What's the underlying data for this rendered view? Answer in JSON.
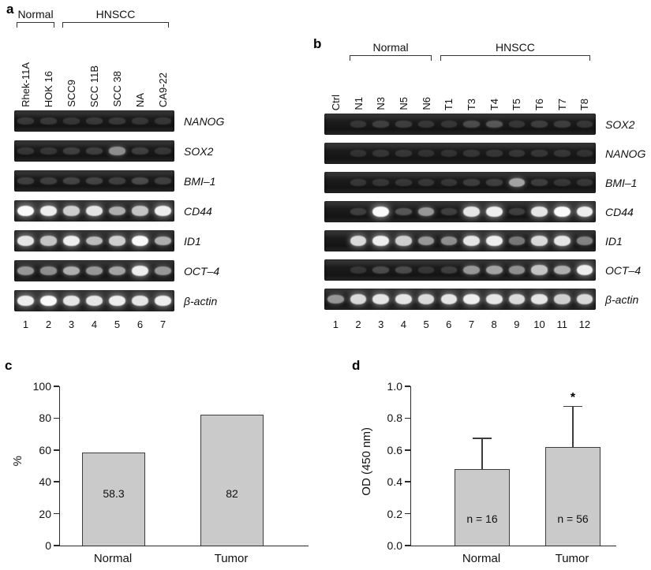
{
  "panels": {
    "a": {
      "letter": "a",
      "groups": [
        {
          "label": "Normal",
          "from": 0,
          "to": 1
        },
        {
          "label": "HNSCC",
          "from": 2,
          "to": 6
        }
      ],
      "lanes": [
        "Rhek-11A",
        "HOK 16",
        "SCC9",
        "SCC 11B",
        "SCC 38",
        "NA",
        "CA9-22"
      ],
      "lane_numbers": [
        "1",
        "2",
        "3",
        "4",
        "5",
        "6",
        "7"
      ],
      "rows": [
        {
          "gene": "NANOG",
          "bands": [
            0.06,
            0.06,
            0.05,
            0.06,
            0.06,
            0.05,
            0.05
          ]
        },
        {
          "gene": "SOX2",
          "bands": [
            0.05,
            0.05,
            0.1,
            0.1,
            0.45,
            0.1,
            0.05
          ]
        },
        {
          "gene": "BMI–1",
          "bands": [
            0.1,
            0.1,
            0.12,
            0.12,
            0.1,
            0.15,
            0.1
          ]
        },
        {
          "gene": "CD44",
          "bands": [
            0.95,
            0.9,
            0.75,
            0.85,
            0.6,
            0.7,
            0.9
          ]
        },
        {
          "gene": "ID1",
          "bands": [
            0.85,
            0.7,
            0.9,
            0.65,
            0.75,
            0.95,
            0.6
          ]
        },
        {
          "gene": "OCT–4",
          "bands": [
            0.5,
            0.45,
            0.6,
            0.5,
            0.55,
            0.9,
            0.5
          ]
        },
        {
          "gene": "β-actin",
          "bands": [
            0.9,
            0.95,
            0.85,
            0.85,
            0.9,
            0.85,
            0.9
          ]
        }
      ]
    },
    "b": {
      "letter": "b",
      "groups": [
        {
          "label": "Normal",
          "from": 1,
          "to": 4
        },
        {
          "label": "HNSCC",
          "from": 5,
          "to": 11
        }
      ],
      "lanes": [
        "Ctrl",
        "N1",
        "N3",
        "N5",
        "N6",
        "T1",
        "T3",
        "T4",
        "T5",
        "T6",
        "T7",
        "T8"
      ],
      "lane_numbers": [
        "1",
        "2",
        "3",
        "4",
        "5",
        "6",
        "7",
        "8",
        "9",
        "10",
        "11",
        "12"
      ],
      "rows": [
        {
          "gene": "SOX2",
          "bands": [
            0.0,
            0.05,
            0.1,
            0.08,
            0.05,
            0.05,
            0.15,
            0.2,
            0.05,
            0.08,
            0.08,
            0.05
          ]
        },
        {
          "gene": "NANOG",
          "bands": [
            0.0,
            0.03,
            0.05,
            0.05,
            0.03,
            0.03,
            0.05,
            0.05,
            0.05,
            0.05,
            0.05,
            0.03
          ]
        },
        {
          "gene": "BMI–1",
          "bands": [
            0.0,
            0.05,
            0.05,
            0.05,
            0.05,
            0.05,
            0.08,
            0.1,
            0.55,
            0.08,
            0.05,
            0.05
          ]
        },
        {
          "gene": "CD44",
          "bands": [
            0.0,
            0.1,
            0.95,
            0.2,
            0.5,
            0.1,
            0.85,
            0.9,
            0.1,
            0.85,
            0.95,
            0.9
          ]
        },
        {
          "gene": "ID1",
          "bands": [
            0.0,
            0.8,
            0.9,
            0.75,
            0.5,
            0.45,
            0.85,
            0.9,
            0.35,
            0.8,
            0.85,
            0.4
          ]
        },
        {
          "gene": "OCT–4",
          "bands": [
            0.0,
            0.05,
            0.15,
            0.15,
            0.05,
            0.1,
            0.5,
            0.55,
            0.45,
            0.7,
            0.6,
            0.9
          ]
        },
        {
          "gene": "β-actin",
          "bands": [
            0.5,
            0.8,
            0.85,
            0.85,
            0.8,
            0.85,
            0.9,
            0.85,
            0.8,
            0.85,
            0.75,
            0.8
          ]
        }
      ]
    },
    "c": {
      "letter": "c",
      "ylabel": "%",
      "ymax": 100,
      "yticks": [
        "0",
        "20",
        "40",
        "60",
        "80",
        "100"
      ],
      "bars": [
        {
          "category": "Normal",
          "value": 58.3,
          "label": "58.3"
        },
        {
          "category": "Tumor",
          "value": 82,
          "label": "82"
        }
      ]
    },
    "d": {
      "letter": "d",
      "ylabel": "OD (450 nm)",
      "ymax": 1.0,
      "yticks": [
        "0.0",
        "0.2",
        "0.4",
        "0.6",
        "0.8",
        "1.0"
      ],
      "bars": [
        {
          "category": "Normal",
          "value": 0.48,
          "err": 0.19,
          "label": "n = 16"
        },
        {
          "category": "Tumor",
          "value": 0.62,
          "err": 0.25,
          "label": "n = 56",
          "sig": "*"
        }
      ]
    }
  },
  "chart_data": [
    {
      "type": "bar",
      "title": "Panel c",
      "categories": [
        "Normal",
        "Tumor"
      ],
      "values": [
        58.3,
        82
      ],
      "xlabel": "",
      "ylabel": "%",
      "ylim": [
        0,
        100
      ],
      "data_labels": [
        "58.3",
        "82"
      ],
      "grid": false,
      "bar_color": "#cacaca"
    },
    {
      "type": "bar",
      "title": "Panel d",
      "categories": [
        "Normal",
        "Tumor"
      ],
      "values": [
        0.48,
        0.62
      ],
      "errors_upper": [
        0.19,
        0.25
      ],
      "xlabel": "",
      "ylabel": "OD (450 nm)",
      "ylim": [
        0,
        1.0
      ],
      "data_labels": [
        "n = 16",
        "n = 56"
      ],
      "significance": [
        "",
        "*"
      ],
      "grid": false,
      "bar_color": "#cacaca"
    }
  ]
}
